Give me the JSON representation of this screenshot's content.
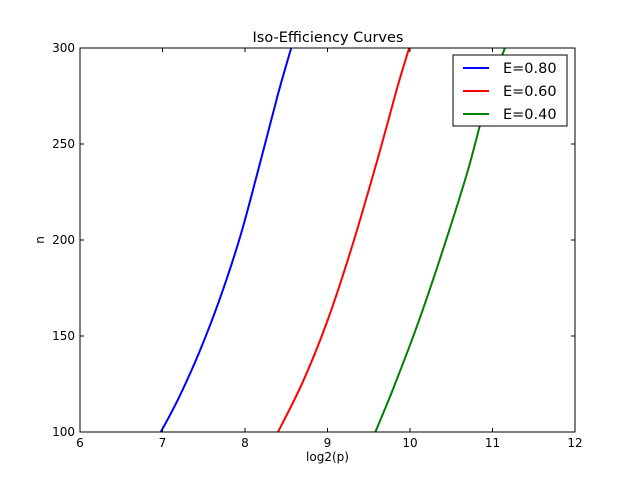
{
  "chart_data": {
    "type": "line",
    "title": "Iso-Efficiency Curves",
    "xlabel": "log2(p)",
    "ylabel": "n",
    "xlim": [
      6,
      12
    ],
    "ylim": [
      100,
      300
    ],
    "xticks": [
      "6",
      "7",
      "8",
      "9",
      "10",
      "11",
      "12"
    ],
    "yticks": [
      "100",
      "150",
      "200",
      "250",
      "300"
    ],
    "grid": false,
    "legend_position": "top-right",
    "series": [
      {
        "name": "E=0.80",
        "color": "#0000ff",
        "x": [
          6.98,
          7.2,
          7.45,
          7.7,
          7.95,
          8.2,
          8.4,
          8.56
        ],
        "y": [
          100,
          118,
          142,
          170,
          203,
          243,
          276,
          300
        ]
      },
      {
        "name": "E=0.60",
        "color": "#ff0000",
        "x": [
          8.4,
          8.7,
          9.0,
          9.3,
          9.6,
          9.85,
          9.99
        ],
        "y": [
          100,
          126,
          158,
          197,
          241,
          280,
          300
        ]
      },
      {
        "name": "E=0.40",
        "color": "#008000",
        "x": [
          9.58,
          9.8,
          10.1,
          10.4,
          10.7,
          10.95,
          11.15
        ],
        "y": [
          100,
          123,
          157,
          195,
          236,
          276,
          300
        ]
      }
    ]
  }
}
